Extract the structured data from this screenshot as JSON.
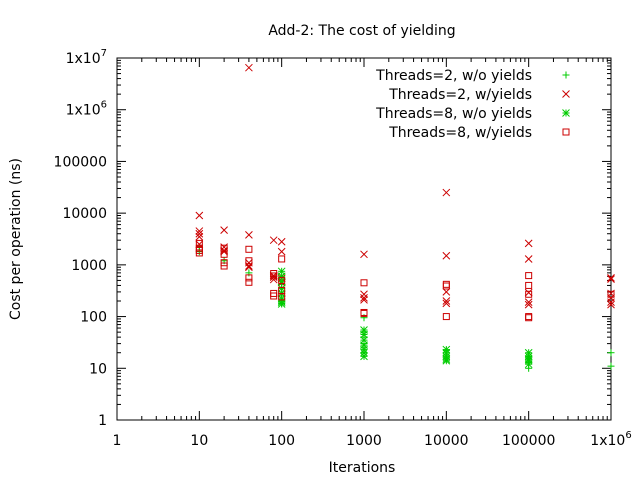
{
  "chart_data": {
    "type": "scatter",
    "title": "Add-2: The cost of yielding",
    "xlabel": "Iterations",
    "ylabel": "Cost per operation (ns)",
    "x_scale": "log",
    "y_scale": "log",
    "xlim": [
      1,
      1000000
    ],
    "ylim": [
      1,
      10000000
    ],
    "grid": false,
    "legend_position": "top-right",
    "x_ticks": [
      {
        "value": 1,
        "label": "1"
      },
      {
        "value": 10,
        "label": "10"
      },
      {
        "value": 100,
        "label": "100"
      },
      {
        "value": 1000,
        "label": "1000"
      },
      {
        "value": 10000,
        "label": "10000"
      },
      {
        "value": 100000,
        "label": "100000"
      },
      {
        "value": 1000000,
        "base": "1x10",
        "exp": "6"
      }
    ],
    "y_ticks": [
      {
        "value": 1,
        "label": "1"
      },
      {
        "value": 10,
        "label": "10"
      },
      {
        "value": 100,
        "label": "100"
      },
      {
        "value": 1000,
        "label": "1000"
      },
      {
        "value": 10000,
        "label": "10000"
      },
      {
        "value": 100000,
        "label": "100000"
      },
      {
        "value": 1000000,
        "base": "1x10",
        "exp": "6"
      },
      {
        "value": 10000000,
        "base": "1x10",
        "exp": "7"
      }
    ],
    "series": [
      {
        "name": "Threads=2, w/o yields",
        "color": "#00cc00",
        "marker": "plus",
        "points": [
          [
            10,
            1800
          ],
          [
            10,
            2200
          ],
          [
            20,
            1200
          ],
          [
            40,
            700
          ],
          [
            100,
            250
          ],
          [
            100,
            300
          ],
          [
            100,
            420
          ],
          [
            100,
            200
          ],
          [
            100,
            180
          ],
          [
            1000,
            95
          ],
          [
            1000,
            50
          ],
          [
            1000,
            40
          ],
          [
            1000,
            30
          ],
          [
            1000,
            25
          ],
          [
            1000,
            20
          ],
          [
            10000,
            18
          ],
          [
            10000,
            15
          ],
          [
            10000,
            22
          ],
          [
            100000,
            17
          ],
          [
            100000,
            13
          ],
          [
            100000,
            10
          ],
          [
            100000,
            15
          ],
          [
            1000000,
            20
          ],
          [
            1000000,
            11
          ]
        ]
      },
      {
        "name": "Threads=2, w/yields",
        "color": "#cc0000",
        "marker": "cross",
        "points": [
          [
            10,
            9000
          ],
          [
            10,
            4500
          ],
          [
            10,
            4000
          ],
          [
            10,
            3500
          ],
          [
            10,
            2500
          ],
          [
            20,
            4700
          ],
          [
            20,
            2200
          ],
          [
            20,
            1900
          ],
          [
            20,
            1800
          ],
          [
            40,
            6500000
          ],
          [
            40,
            3800
          ],
          [
            40,
            1100
          ],
          [
            40,
            950
          ],
          [
            40,
            900
          ],
          [
            80,
            3000
          ],
          [
            80,
            620
          ],
          [
            80,
            580
          ],
          [
            80,
            520
          ],
          [
            100,
            2800
          ],
          [
            100,
            1800
          ],
          [
            100,
            600
          ],
          [
            100,
            550
          ],
          [
            100,
            480
          ],
          [
            100,
            450
          ],
          [
            1000,
            1600
          ],
          [
            1000,
            270
          ],
          [
            1000,
            230
          ],
          [
            1000,
            210
          ],
          [
            10000,
            25000
          ],
          [
            10000,
            1500
          ],
          [
            10000,
            300
          ],
          [
            10000,
            200
          ],
          [
            10000,
            180
          ],
          [
            100000,
            2600
          ],
          [
            100000,
            1300
          ],
          [
            100000,
            290
          ],
          [
            100000,
            190
          ],
          [
            100000,
            170
          ],
          [
            1000000,
            560
          ],
          [
            1000000,
            530
          ],
          [
            1000000,
            280
          ],
          [
            1000000,
            230
          ],
          [
            1000000,
            190
          ],
          [
            1000000,
            170
          ]
        ]
      },
      {
        "name": "Threads=8, w/o yields",
        "color": "#00cc00",
        "marker": "star",
        "points": [
          [
            100,
            750
          ],
          [
            100,
            600
          ],
          [
            100,
            480
          ],
          [
            100,
            350
          ],
          [
            100,
            280
          ],
          [
            100,
            220
          ],
          [
            100,
            190
          ],
          [
            100,
            175
          ],
          [
            1000,
            55
          ],
          [
            1000,
            45
          ],
          [
            1000,
            35
          ],
          [
            1000,
            28
          ],
          [
            1000,
            23
          ],
          [
            1000,
            20
          ],
          [
            1000,
            17
          ],
          [
            10000,
            23
          ],
          [
            10000,
            20
          ],
          [
            10000,
            17
          ],
          [
            10000,
            15
          ],
          [
            10000,
            14
          ],
          [
            100000,
            20
          ],
          [
            100000,
            17
          ],
          [
            100000,
            15
          ],
          [
            100000,
            14
          ],
          [
            100000,
            12
          ]
        ]
      },
      {
        "name": "Threads=8, w/yields",
        "color": "#cc0000",
        "marker": "square",
        "points": [
          [
            10,
            2600
          ],
          [
            10,
            2100
          ],
          [
            10,
            1900
          ],
          [
            10,
            1700
          ],
          [
            20,
            2100
          ],
          [
            20,
            1600
          ],
          [
            20,
            1100
          ],
          [
            20,
            950
          ],
          [
            40,
            2000
          ],
          [
            40,
            1200
          ],
          [
            40,
            560
          ],
          [
            40,
            460
          ],
          [
            80,
            680
          ],
          [
            80,
            610
          ],
          [
            80,
            280
          ],
          [
            80,
            250
          ],
          [
            100,
            1300
          ],
          [
            100,
            500
          ],
          [
            100,
            320
          ],
          [
            100,
            240
          ],
          [
            1000,
            450
          ],
          [
            1000,
            120
          ],
          [
            1000,
            115
          ],
          [
            10000,
            420
          ],
          [
            10000,
            390
          ],
          [
            10000,
            100
          ],
          [
            100000,
            620
          ],
          [
            100000,
            400
          ],
          [
            100000,
            270
          ],
          [
            100000,
            100
          ],
          [
            100000,
            95
          ],
          [
            1000000,
            270
          ]
        ]
      }
    ]
  }
}
